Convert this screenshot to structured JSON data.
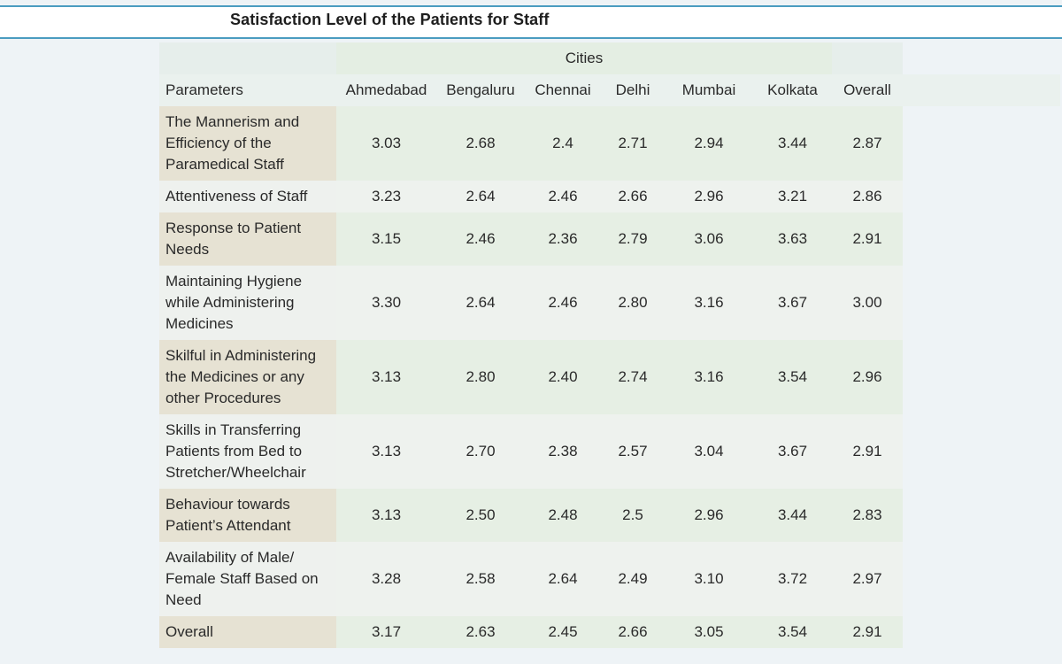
{
  "title": "Satisfaction Level of the Patients for Staff",
  "cities_label": "Cities",
  "headers": {
    "parameters": "Parameters",
    "cols": [
      "Ahmedabad",
      "Bengaluru",
      "Chennai",
      "Delhi",
      "Mumbai",
      "Kolkata",
      "Overall"
    ]
  },
  "rows": [
    {
      "label": "The Mannerism and Efficiency of the Paramedical Staff",
      "values": [
        "3.03",
        "2.68",
        "2.4",
        "2.71",
        "2.94",
        "3.44",
        "2.87"
      ]
    },
    {
      "label": "Attentiveness of Staff",
      "values": [
        "3.23",
        "2.64",
        "2.46",
        "2.66",
        "2.96",
        "3.21",
        "2.86"
      ]
    },
    {
      "label": "Response to Patient Needs",
      "values": [
        "3.15",
        "2.46",
        "2.36",
        "2.79",
        "3.06",
        "3.63",
        "2.91"
      ]
    },
    {
      "label": "Maintaining Hygiene while Administering Medicines",
      "values": [
        "3.30",
        "2.64",
        "2.46",
        "2.80",
        "3.16",
        "3.67",
        "3.00"
      ]
    },
    {
      "label": "Skilful in Administering the Medicines or any other Procedures",
      "values": [
        "3.13",
        "2.80",
        "2.40",
        "2.74",
        "3.16",
        "3.54",
        "2.96"
      ]
    },
    {
      "label": "Skills in Transferring Patients from Bed to Stretcher/Wheelchair",
      "values": [
        "3.13",
        "2.70",
        "2.38",
        "2.57",
        "3.04",
        "3.67",
        "2.91"
      ]
    },
    {
      "label": "Behaviour towards Patient’s Attendant",
      "values": [
        "3.13",
        "2.50",
        "2.48",
        "2.5",
        "2.96",
        "3.44",
        "2.83"
      ]
    },
    {
      "label": "Availability of Male/ Female Staff Based on Need",
      "values": [
        "3.28",
        "2.58",
        "2.64",
        "2.49",
        "3.10",
        "3.72",
        "2.97"
      ]
    },
    {
      "label": "Overall",
      "values": [
        "3.17",
        "2.63",
        "2.45",
        "2.66",
        "3.05",
        "3.54",
        "2.91"
      ]
    }
  ]
}
